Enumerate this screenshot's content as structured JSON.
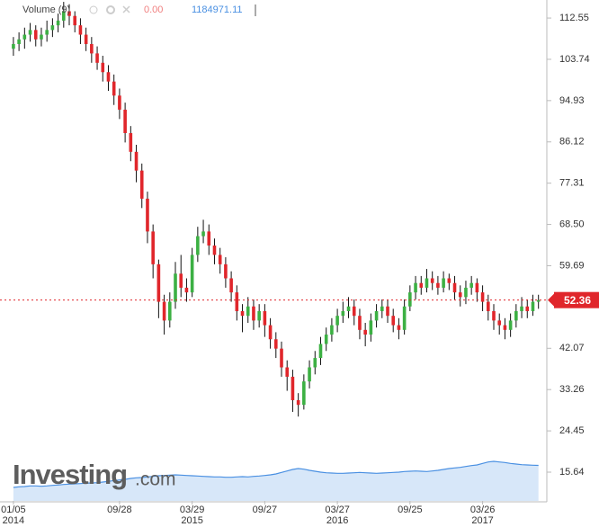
{
  "chart_data": {
    "type": "candlestick",
    "up_color": "#3cb043",
    "down_color": "#e0262b",
    "xlim": [
      -2.4,
      95.5
    ],
    "ylim": [
      9.5,
      116.4
    ],
    "grid": false,
    "yticks": [
      15.64,
      24.45,
      33.26,
      42.07,
      59.69,
      {
        "value": 68.5,
        "label": "68.50"
      },
      77.31,
      86.12,
      94.93,
      103.74,
      112.55
    ],
    "xticks": [
      {
        "value": 0,
        "label": "01/05"
      },
      {
        "value": 19,
        "label": "09/28"
      },
      {
        "value": 32,
        "label": "03/29"
      },
      {
        "value": 45,
        "label": "09/27"
      },
      {
        "value": 58,
        "label": "03/27"
      },
      {
        "value": 71,
        "label": "09/25"
      },
      {
        "value": 84,
        "label": "03/26"
      }
    ],
    "year_labels": [
      {
        "value": 0,
        "label": "2014"
      },
      {
        "value": 32,
        "label": "2015"
      },
      {
        "value": 58,
        "label": "2016"
      },
      {
        "value": 84,
        "label": "2017"
      }
    ],
    "open": [
      106,
      107,
      108,
      109,
      110,
      108,
      109,
      110,
      111,
      112,
      114,
      113,
      111,
      109,
      107,
      105,
      103,
      101,
      99,
      96,
      93,
      88,
      84,
      80,
      74,
      67,
      60,
      52,
      48,
      52,
      58,
      55,
      54,
      62,
      66,
      67,
      64,
      62,
      60,
      57,
      54,
      50,
      49,
      51,
      48,
      50,
      47,
      44,
      42,
      38,
      36,
      31,
      30,
      35,
      38,
      40,
      43,
      45,
      47,
      49,
      50,
      51,
      49,
      46,
      45,
      48,
      50,
      51,
      49,
      47,
      46,
      51,
      54,
      56,
      55,
      57,
      56,
      55,
      57,
      56,
      54,
      53,
      55,
      56,
      54,
      52,
      50,
      48,
      47,
      46,
      48,
      50,
      51,
      50,
      52
    ],
    "high": [
      108.5,
      109.5,
      110.5,
      111.5,
      111,
      110.5,
      112,
      112.5,
      113.5,
      116,
      115.5,
      114,
      112.5,
      110.5,
      108.5,
      106.5,
      104.5,
      102.5,
      100.5,
      97.5,
      94.5,
      89.5,
      85.5,
      81.5,
      75.5,
      68.5,
      61,
      53.5,
      54,
      60.5,
      62,
      57,
      63.5,
      68,
      69.5,
      68.5,
      65.5,
      63.5,
      61.5,
      58.5,
      55.5,
      51.5,
      53,
      52.5,
      51.5,
      51.5,
      48.5,
      45.5,
      43.5,
      39.5,
      37.5,
      32.5,
      36.5,
      39.5,
      41.5,
      44.5,
      46.5,
      48.5,
      50.5,
      52,
      53,
      52.5,
      50.5,
      47.5,
      49.5,
      51.5,
      52.5,
      52.5,
      50.5,
      48.5,
      52.5,
      55.5,
      57.5,
      57.5,
      59,
      58.5,
      57.5,
      58.5,
      58,
      57.5,
      55.5,
      56.5,
      57.5,
      57,
      55.5,
      53.5,
      51.5,
      49.5,
      48.5,
      49.5,
      51.5,
      53,
      52.5,
      53.5,
      53.5
    ],
    "low": [
      104.5,
      105.5,
      106,
      107.5,
      106.5,
      106.5,
      107.5,
      108.5,
      109.5,
      110.5,
      111,
      109.5,
      107,
      105.5,
      103,
      101.5,
      99,
      97,
      94,
      91,
      86,
      82,
      77.5,
      72,
      64.5,
      57,
      48.5,
      45,
      46.5,
      50.5,
      53,
      52,
      53,
      60.5,
      64.5,
      62,
      60,
      58,
      55,
      52,
      48,
      45.5,
      47.5,
      46,
      46.5,
      44.5,
      42,
      40,
      36,
      33,
      28.5,
      27.5,
      29,
      33.5,
      36.5,
      38.5,
      41.5,
      43.5,
      45.5,
      47.5,
      48.5,
      47,
      44,
      42.5,
      43.5,
      46.5,
      48.5,
      47.5,
      45.5,
      44,
      45,
      50,
      52.5,
      53.5,
      54,
      54.5,
      53.5,
      54,
      54.5,
      52.5,
      51,
      51.5,
      53.5,
      52,
      50,
      48,
      46,
      45,
      44,
      44.5,
      46.5,
      48.5,
      48.5,
      49,
      50.5
    ],
    "close": [
      107,
      108,
      109,
      110,
      108,
      109,
      110,
      111,
      112,
      114,
      113,
      111,
      109,
      107,
      105,
      103,
      101,
      99,
      96,
      93,
      88,
      84,
      80,
      74,
      67,
      60,
      52,
      48,
      52,
      58,
      55,
      54,
      62,
      66,
      67,
      64,
      62,
      60,
      57,
      54,
      50,
      49,
      51,
      48,
      50,
      47,
      44,
      42,
      38,
      36,
      31,
      30,
      35,
      38,
      40,
      43,
      45,
      47,
      49,
      50,
      51,
      49,
      46,
      45,
      48,
      50,
      51,
      49,
      47,
      46,
      51,
      54,
      56,
      55,
      57,
      56,
      55,
      57,
      56,
      54,
      53,
      55,
      56,
      54,
      52,
      50,
      48,
      47,
      46,
      48,
      50,
      51,
      50,
      52,
      52.36
    ],
    "last_price": 52.36,
    "last_color": "#e0262b",
    "volume": {
      "name": "Volume (9)",
      "change": "0.00",
      "color": "#4a90e2",
      "vlim": [
        0,
        3600000
      ],
      "values": [
        450000,
        470000,
        480000,
        500000,
        500000,
        490000,
        500000,
        520000,
        530000,
        550000,
        560000,
        570000,
        580000,
        590000,
        600000,
        610000,
        630000,
        650000,
        680000,
        700000,
        720000,
        750000,
        770000,
        780000,
        800000,
        820000,
        840000,
        850000,
        860000,
        870000,
        860000,
        850000,
        840000,
        830000,
        820000,
        810000,
        800000,
        800000,
        790000,
        790000,
        800000,
        810000,
        800000,
        820000,
        830000,
        850000,
        870000,
        900000,
        950000,
        1000000,
        1050000,
        1080000,
        1060000,
        1020000,
        990000,
        960000,
        940000,
        930000,
        920000,
        920000,
        930000,
        940000,
        950000,
        940000,
        930000,
        920000,
        930000,
        940000,
        950000,
        960000,
        980000,
        990000,
        1000000,
        990000,
        980000,
        1000000,
        1020000,
        1050000,
        1080000,
        1100000,
        1120000,
        1150000,
        1180000,
        1200000,
        1250000,
        1300000,
        1320000,
        1300000,
        1280000,
        1250000,
        1230000,
        1210000,
        1200000,
        1190000,
        1184971.11
      ]
    },
    "watermark": [
      "Investing",
      ".com"
    ]
  }
}
